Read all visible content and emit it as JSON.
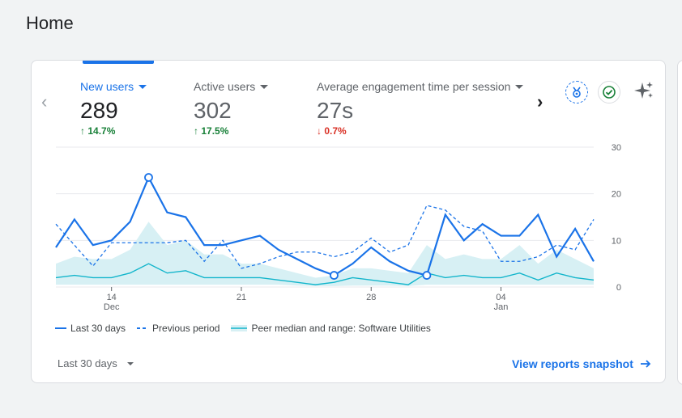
{
  "page": {
    "title": "Home"
  },
  "metrics": [
    {
      "label": "New users",
      "value": "289",
      "change": "14.7%",
      "direction": "up"
    },
    {
      "label": "Active users",
      "value": "302",
      "change": "17.5%",
      "direction": "up"
    },
    {
      "label": "Average engagement time per session",
      "value": "27s",
      "change": "0.7%",
      "direction": "down"
    }
  ],
  "icons": {
    "prev": "chevron-left-icon",
    "next": "chevron-right-icon",
    "insights": "insights-badge-icon",
    "check": "check-circle-icon",
    "sparkle": "sparkle-icon"
  },
  "colors": {
    "accent": "#1a73e8",
    "up": "#188038",
    "down": "#d93025",
    "peer": "#12b5cb"
  },
  "chart_data": {
    "type": "line",
    "x_tick_labels": [
      {
        "day": "14",
        "month": "Dec"
      },
      {
        "day": "21",
        "month": ""
      },
      {
        "day": "28",
        "month": ""
      },
      {
        "day": "04",
        "month": "Jan"
      }
    ],
    "y_ticks": [
      "0",
      "10",
      "20",
      "30"
    ],
    "ylim": [
      0,
      30
    ],
    "grid": true,
    "series": [
      {
        "name": "Last 30 days",
        "style": "solid",
        "values": [
          8.5,
          14.5,
          9,
          10,
          14,
          23.5,
          16,
          15,
          9,
          9,
          10,
          11,
          8,
          6,
          4,
          2.5,
          5,
          8.5,
          5.5,
          3.5,
          2.5,
          15.5,
          10,
          13.5,
          11,
          11,
          15.5,
          6.5,
          12.5,
          5.5
        ]
      },
      {
        "name": "Previous period",
        "style": "dashed",
        "values": [
          13.5,
          9,
          4.5,
          9.5,
          9.5,
          9.5,
          9.5,
          10,
          5.5,
          10,
          4,
          5,
          6.5,
          7.5,
          7.5,
          6.5,
          7.5,
          10.5,
          7.5,
          9,
          17.5,
          16.5,
          13,
          12,
          5.5,
          5.5,
          6.5,
          9,
          8,
          14.5
        ]
      },
      {
        "name": "Peer median and range: Software Utilities",
        "style": "band",
        "values": [
          2,
          2.5,
          2,
          2,
          3,
          5,
          3,
          3.5,
          2,
          2,
          2,
          2,
          1.5,
          1,
          0.5,
          1,
          2,
          1.5,
          1,
          0.5,
          3,
          2,
          2.5,
          2,
          2,
          3,
          1.5,
          3,
          2,
          1.5
        ],
        "upper": [
          5,
          6.5,
          6,
          6,
          8,
          14,
          9,
          10,
          7,
          7,
          5,
          5,
          4,
          3,
          2,
          2.5,
          4,
          4,
          3.5,
          3,
          9,
          6,
          7,
          6,
          6,
          9,
          5,
          8,
          6,
          4
        ],
        "lower": [
          0.5,
          0.5,
          0.5,
          0.5,
          0.5,
          0.5,
          0.5,
          0.5,
          0.5,
          0.5,
          0.5,
          0.5,
          0.5,
          0.3,
          0.2,
          0.2,
          0.3,
          0.3,
          0.3,
          0.2,
          0.5,
          0.5,
          0.5,
          0.5,
          0.5,
          0.5,
          0.5,
          0.5,
          0.5,
          0.5
        ]
      }
    ],
    "markers": [
      5,
      15,
      20
    ]
  },
  "footer": {
    "range_label": "Last 30 days",
    "view_link": "View reports snapshot"
  }
}
